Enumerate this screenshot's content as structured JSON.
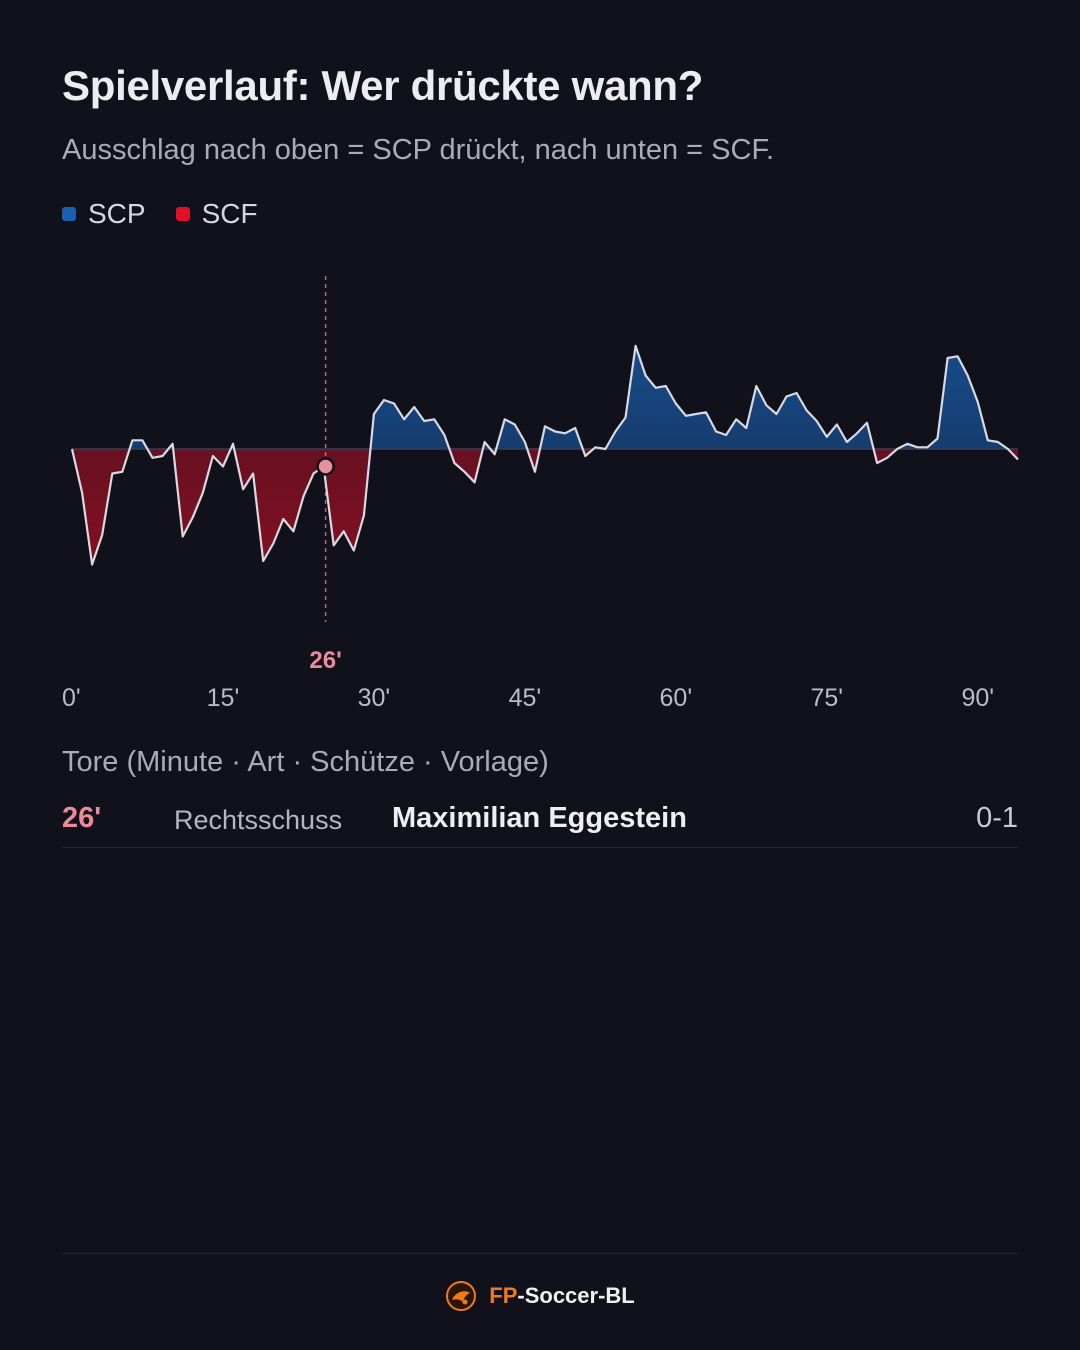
{
  "header": {
    "title": "Spielverlauf: Wer drückte wann?",
    "subtitle": "Ausschlag nach oben = SCP drückt, nach unten = SCF."
  },
  "legend": [
    {
      "label": "SCP",
      "color": "#1a5fb0"
    },
    {
      "label": "SCF",
      "color": "#e0102a"
    }
  ],
  "chart_data": {
    "type": "area",
    "x_ticks": [
      "0'",
      "15'",
      "30'",
      "45'",
      "60'",
      "75'",
      "90'"
    ],
    "x_tick_values": [
      0,
      15,
      30,
      45,
      60,
      75,
      90
    ],
    "xlim": [
      0,
      94
    ],
    "ylim": [
      -1,
      1
    ],
    "grid": false,
    "positive_color": "#1a5fb0",
    "negative_color": "#e0102a",
    "series": [
      {
        "x": [
          0,
          1,
          2,
          3,
          4,
          5,
          6,
          7,
          8,
          9,
          10,
          11,
          12,
          13,
          14,
          15,
          16,
          17,
          18,
          19,
          20,
          21,
          22,
          23,
          24,
          25,
          26,
          27,
          28,
          29,
          30,
          31,
          32,
          33,
          34,
          35,
          36,
          37,
          38,
          39,
          40,
          41,
          42,
          43,
          44,
          45,
          46,
          47,
          48,
          49,
          50,
          51,
          52,
          53,
          54,
          55,
          56,
          57,
          58,
          59,
          60,
          61,
          62,
          63,
          64,
          65,
          66,
          67,
          68,
          69,
          70,
          71,
          72,
          73,
          74,
          75,
          76,
          77,
          78,
          79,
          80,
          81,
          82,
          83,
          84,
          85,
          86,
          87,
          88,
          89,
          90,
          91,
          92,
          93,
          94
        ],
        "values": [
          0,
          -0.25,
          -0.66,
          -0.49,
          -0.14,
          -0.13,
          0.05,
          0.05,
          -0.05,
          -0.04,
          0.03,
          -0.5,
          -0.39,
          -0.25,
          -0.04,
          -0.1,
          0.03,
          -0.23,
          -0.14,
          -0.64,
          -0.54,
          -0.4,
          -0.47,
          -0.27,
          -0.14,
          -0.1,
          -0.55,
          -0.47,
          -0.58,
          -0.38,
          0.2,
          0.28,
          0.26,
          0.17,
          0.24,
          0.16,
          0.17,
          0.08,
          -0.08,
          -0.13,
          -0.19,
          0.04,
          -0.03,
          0.17,
          0.14,
          0.04,
          -0.13,
          0.13,
          0.1,
          0.09,
          0.12,
          -0.04,
          0.01,
          0.0,
          0.1,
          0.18,
          0.59,
          0.42,
          0.35,
          0.36,
          0.26,
          0.19,
          0.2,
          0.21,
          0.1,
          0.08,
          0.17,
          0.12,
          0.36,
          0.25,
          0.2,
          0.3,
          0.32,
          0.22,
          0.16,
          0.07,
          0.14,
          0.04,
          0.09,
          0.15,
          -0.08,
          -0.05,
          0.0,
          0.03,
          0.01,
          0.01,
          0.06,
          0.52,
          0.53,
          0.42,
          0.27,
          0.05,
          0.04,
          0.0,
          -0.06
        ]
      }
    ],
    "annotations": [
      {
        "x": 25.2,
        "value": -0.1,
        "label": "26'"
      }
    ]
  },
  "goals": {
    "heading": "Tore (Minute · Art · Schütze · Vorlage)",
    "rows": [
      {
        "minute": "26'",
        "type": "Rechtsschuss",
        "scorer": "Maximilian Eggestein",
        "score": "0-1"
      }
    ]
  },
  "footer": {
    "brand_prefix": "FP",
    "brand_rest": "-Soccer-BL",
    "logo_icon": "fp-soccer-logo-icon"
  }
}
